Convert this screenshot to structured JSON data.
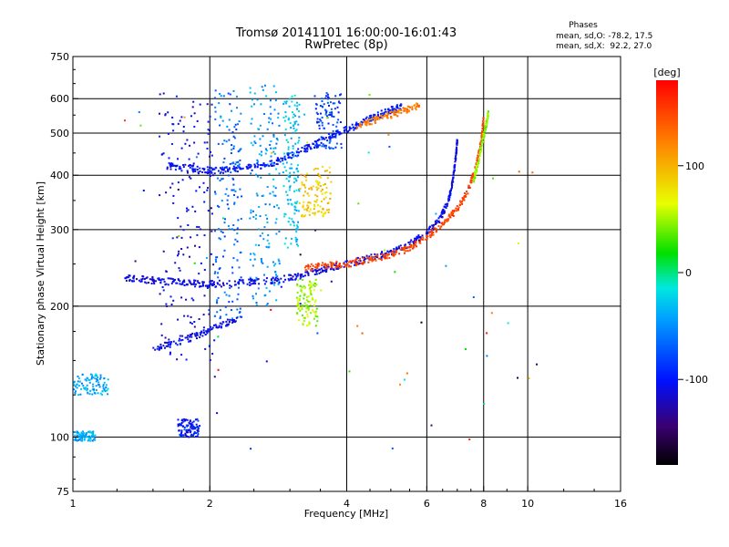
{
  "chart_data": {
    "type": "scatter",
    "title": "Tromsø 20141101 16:00:00-16:01:43",
    "subtitle": "RwPretec (8p)",
    "xlabel": "Frequency [MHz]",
    "ylabel": "Stationary phase Virtual Height [km]",
    "x_scale": "log",
    "y_scale": "log",
    "xlim": [
      1,
      16
    ],
    "ylim": [
      75,
      750
    ],
    "x_ticks": [
      "1",
      "2",
      "4",
      "6",
      "8",
      "10",
      "16"
    ],
    "x_tick_values": [
      1,
      2,
      4,
      6,
      8,
      10,
      16
    ],
    "y_ticks": [
      "75",
      "100",
      "200",
      "300",
      "400",
      "500",
      "600",
      "750"
    ],
    "y_tick_values": [
      75,
      100,
      200,
      300,
      400,
      500,
      600,
      750
    ],
    "grid": true,
    "stats": {
      "heading": "Phases",
      "line_o": "mean, sd,O: -78.2, 17.5",
      "line_x": "mean, sd,X:  92.2, 27.0"
    },
    "colorbar": {
      "label": "[deg]",
      "ticks": [
        "100",
        "0",
        "-100"
      ],
      "tick_values": [
        100,
        0,
        -100
      ],
      "range": [
        -180,
        180
      ]
    },
    "traces": [
      {
        "phase": -110,
        "points": [
          [
            1.3,
            232
          ],
          [
            1.45,
            230
          ],
          [
            1.6,
            228
          ],
          [
            1.8,
            226
          ],
          [
            2.0,
            225
          ],
          [
            2.3,
            226
          ],
          [
            2.6,
            228
          ],
          [
            3.0,
            232
          ],
          [
            3.3,
            238
          ],
          [
            3.6,
            244
          ],
          [
            4.0,
            250
          ],
          [
            4.5,
            258
          ],
          [
            5.0,
            266
          ],
          [
            5.5,
            278
          ],
          [
            6.0,
            294
          ],
          [
            6.4,
            316
          ],
          [
            6.7,
            350
          ],
          [
            6.85,
            390
          ],
          [
            6.95,
            440
          ],
          [
            7.0,
            480
          ]
        ]
      },
      {
        "phase": 150,
        "points": [
          [
            3.2,
            244
          ],
          [
            3.6,
            248
          ],
          [
            4.0,
            250
          ],
          [
            4.5,
            256
          ],
          [
            5.0,
            262
          ],
          [
            5.5,
            272
          ],
          [
            6.0,
            288
          ],
          [
            6.5,
            308
          ],
          [
            7.0,
            334
          ],
          [
            7.4,
            370
          ],
          [
            7.7,
            420
          ],
          [
            7.9,
            480
          ],
          [
            8.0,
            540
          ]
        ]
      },
      {
        "phase": 45,
        "points": [
          [
            7.6,
            390
          ],
          [
            7.8,
            430
          ],
          [
            7.95,
            480
          ],
          [
            8.1,
            520
          ],
          [
            8.2,
            560
          ]
        ]
      },
      {
        "phase": -100,
        "points": [
          [
            1.6,
            420
          ],
          [
            1.8,
            415
          ],
          [
            2.0,
            410
          ],
          [
            2.2,
            412
          ],
          [
            2.5,
            418
          ],
          [
            2.8,
            430
          ],
          [
            3.1,
            450
          ],
          [
            3.4,
            470
          ],
          [
            3.8,
            500
          ],
          [
            4.2,
            520
          ],
          [
            4.6,
            545
          ],
          [
            5.0,
            565
          ],
          [
            5.3,
            575
          ]
        ]
      },
      {
        "phase": -105,
        "points": [
          [
            1.5,
            160
          ],
          [
            1.7,
            165
          ],
          [
            1.9,
            172
          ],
          [
            2.1,
            180
          ],
          [
            2.3,
            188
          ]
        ]
      },
      {
        "phase": 125,
        "points": [
          [
            4.2,
            520
          ],
          [
            4.6,
            535
          ],
          [
            5.0,
            550
          ],
          [
            5.4,
            565
          ],
          [
            5.8,
            580
          ]
        ]
      }
    ],
    "clusters": [
      {
        "x": [
          1.55,
          2.05
        ],
        "y": [
          150,
          620
        ],
        "phase": -110
      },
      {
        "x": [
          2.05,
          2.35
        ],
        "y": [
          180,
          640
        ],
        "phase": -65
      },
      {
        "x": [
          2.45,
          2.85
        ],
        "y": [
          200,
          650
        ],
        "phase": -45
      },
      {
        "x": [
          2.9,
          3.15
        ],
        "y": [
          270,
          620
        ],
        "phase": -30
      },
      {
        "x": [
          3.15,
          3.7
        ],
        "y": [
          320,
          420
        ],
        "phase": 90
      },
      {
        "x": [
          3.1,
          3.45
        ],
        "y": [
          180,
          230
        ],
        "phase": 50
      },
      {
        "x": [
          3.4,
          3.9
        ],
        "y": [
          460,
          620
        ],
        "phase": -80
      },
      {
        "x": [
          1.0,
          1.2
        ],
        "y": [
          125,
          140
        ],
        "phase": -40
      },
      {
        "x": [
          1.0,
          1.12
        ],
        "y": [
          98,
          103
        ],
        "phase": -40
      },
      {
        "x": [
          1.7,
          1.9
        ],
        "y": [
          100,
          110
        ],
        "phase": -100
      }
    ]
  }
}
